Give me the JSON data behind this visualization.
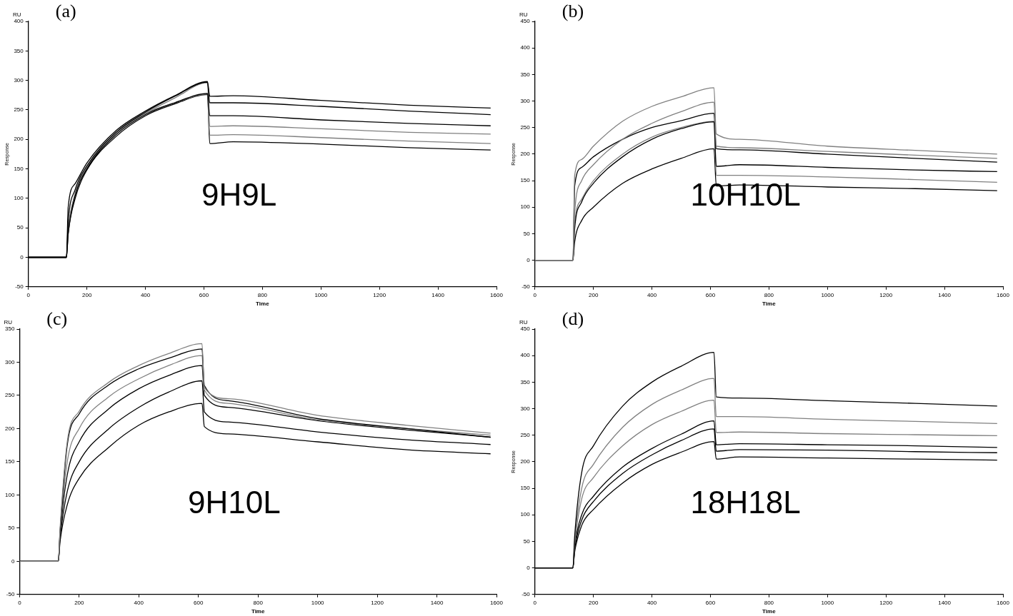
{
  "chart_data": [
    {
      "type": "line",
      "title": "(a)",
      "xlabel": "Time",
      "ylabel": "Response",
      "annotations": [
        "RU",
        "9H9L"
      ],
      "marker": "none",
      "x": [
        0,
        130,
        136,
        160,
        200,
        300,
        400,
        500,
        612,
        620,
        700,
        1000,
        1300,
        1580
      ],
      "xlim": [
        0,
        1600
      ],
      "xticks": [
        0,
        200,
        400,
        600,
        800,
        1000,
        1200,
        1400,
        1600
      ],
      "ylim": [
        -50,
        400
      ],
      "yticks": [
        -50,
        0,
        50,
        100,
        150,
        200,
        250,
        300,
        350,
        400
      ],
      "series": [
        {
          "color": "#000000",
          "values": [
            0,
            0,
            85,
            125,
            160,
            215,
            248,
            274,
            298,
            273,
            274,
            266,
            258,
            253
          ]
        },
        {
          "color": "#000000",
          "values": [
            0,
            0,
            60,
            115,
            155,
            212,
            246,
            273,
            297,
            262,
            262,
            256,
            248,
            242
          ]
        },
        {
          "color": "#000000",
          "values": [
            0,
            0,
            40,
            105,
            150,
            208,
            242,
            262,
            278,
            240,
            240,
            233,
            227,
            223
          ]
        },
        {
          "color": "#808080",
          "values": [
            0,
            0,
            45,
            108,
            152,
            210,
            244,
            270,
            296,
            222,
            223,
            218,
            212,
            209
          ]
        },
        {
          "color": "#808080",
          "values": [
            0,
            0,
            45,
            108,
            152,
            210,
            244,
            262,
            277,
            207,
            208,
            203,
            197,
            193
          ]
        },
        {
          "color": "#000000",
          "values": [
            0,
            0,
            40,
            100,
            148,
            205,
            240,
            260,
            276,
            193,
            196,
            192,
            186,
            182
          ]
        }
      ]
    },
    {
      "type": "line",
      "title": "(b)",
      "xlabel": "Time",
      "ylabel": "Response",
      "annotations": [
        "RU",
        "10H10L"
      ],
      "marker": "none",
      "x": [
        0,
        130,
        136,
        160,
        200,
        300,
        400,
        500,
        612,
        620,
        700,
        1000,
        1300,
        1580
      ],
      "xlim": [
        0,
        1600
      ],
      "xticks": [
        0,
        200,
        400,
        600,
        800,
        1000,
        1200,
        1400,
        1600
      ],
      "ylim": [
        -50,
        450
      ],
      "yticks": [
        -50,
        0,
        50,
        100,
        150,
        200,
        250,
        300,
        350,
        400,
        450
      ],
      "series": [
        {
          "color": "#808080",
          "values": [
            0,
            0,
            160,
            190,
            215,
            262,
            290,
            308,
            325,
            238,
            228,
            215,
            207,
            200
          ]
        },
        {
          "color": "#808080",
          "values": [
            0,
            0,
            90,
            150,
            180,
            228,
            258,
            280,
            298,
            215,
            212,
            205,
            198,
            192
          ]
        },
        {
          "color": "#000000",
          "values": [
            0,
            0,
            140,
            175,
            195,
            228,
            250,
            263,
            277,
            210,
            208,
            200,
            192,
            185
          ]
        },
        {
          "color": "#000000",
          "values": [
            0,
            0,
            60,
            110,
            145,
            195,
            228,
            248,
            261,
            177,
            180,
            175,
            170,
            167
          ]
        },
        {
          "color": "#808080",
          "values": [
            0,
            0,
            70,
            115,
            150,
            200,
            232,
            250,
            262,
            160,
            160,
            157,
            152,
            147
          ]
        },
        {
          "color": "#000000",
          "values": [
            0,
            0,
            35,
            75,
            100,
            145,
            172,
            192,
            210,
            140,
            142,
            138,
            135,
            131
          ]
        }
      ]
    },
    {
      "type": "line",
      "title": "(c)",
      "xlabel": "Time",
      "annotations": [
        "RU",
        "9H10L"
      ],
      "marker": "none",
      "x": [
        0,
        130,
        136,
        160,
        200,
        300,
        400,
        500,
        612,
        620,
        700,
        1000,
        1300,
        1580
      ],
      "xlim": [
        0,
        1600
      ],
      "xticks": [
        0,
        200,
        400,
        600,
        800,
        1000,
        1200,
        1400,
        1600
      ],
      "ylim": [
        -50,
        350
      ],
      "yticks": [
        -50,
        0,
        50,
        100,
        150,
        200,
        250,
        300,
        350
      ],
      "series": [
        {
          "color": "#808080",
          "values": [
            0,
            0,
            50,
            180,
            226,
            270,
            295,
            313,
            328,
            262,
            245,
            220,
            205,
            193
          ]
        },
        {
          "color": "#000000",
          "values": [
            0,
            0,
            45,
            175,
            222,
            266,
            290,
            306,
            320,
            265,
            242,
            215,
            200,
            187
          ]
        },
        {
          "color": "#808080",
          "values": [
            0,
            0,
            45,
            150,
            200,
            248,
            275,
            295,
            310,
            258,
            238,
            213,
            200,
            190
          ]
        },
        {
          "color": "#000000",
          "values": [
            0,
            0,
            40,
            130,
            180,
            230,
            260,
            280,
            295,
            250,
            232,
            212,
            198,
            187
          ]
        },
        {
          "color": "#000000",
          "values": [
            0,
            0,
            35,
            105,
            150,
            200,
            232,
            255,
            272,
            225,
            210,
            195,
            183,
            176
          ]
        },
        {
          "color": "#000000",
          "values": [
            0,
            0,
            30,
            85,
            125,
            172,
            205,
            225,
            238,
            203,
            192,
            180,
            168,
            162
          ]
        }
      ]
    },
    {
      "type": "line",
      "title": "(d)",
      "xlabel": "Time",
      "ylabel": "Response",
      "annotations": [
        "RU",
        "18H18L"
      ],
      "marker": "none",
      "x": [
        0,
        130,
        136,
        160,
        200,
        300,
        400,
        500,
        612,
        620,
        700,
        1000,
        1300,
        1580
      ],
      "xlim": [
        0,
        1600
      ],
      "xticks": [
        0,
        200,
        400,
        600,
        800,
        1000,
        1200,
        1400,
        1600
      ],
      "ylim": [
        -50,
        450
      ],
      "yticks": [
        -50,
        0,
        50,
        100,
        150,
        200,
        250,
        300,
        350,
        400,
        450
      ],
      "series": [
        {
          "color": "#000000",
          "values": [
            0,
            0,
            60,
            180,
            230,
            305,
            350,
            380,
            406,
            322,
            320,
            315,
            310,
            305
          ]
        },
        {
          "color": "#808080",
          "values": [
            0,
            0,
            50,
            150,
            195,
            265,
            308,
            335,
            357,
            285,
            285,
            280,
            276,
            272
          ]
        },
        {
          "color": "#808080",
          "values": [
            0,
            0,
            45,
            130,
            170,
            230,
            270,
            295,
            316,
            255,
            256,
            253,
            251,
            249
          ]
        },
        {
          "color": "#000000",
          "values": [
            0,
            0,
            40,
            100,
            135,
            190,
            225,
            252,
            277,
            232,
            234,
            232,
            230,
            227
          ]
        },
        {
          "color": "#000000",
          "values": [
            0,
            0,
            35,
            90,
            125,
            178,
            213,
            240,
            262,
            220,
            223,
            222,
            219,
            217
          ]
        },
        {
          "color": "#000000",
          "values": [
            0,
            0,
            30,
            80,
            110,
            160,
            195,
            218,
            238,
            205,
            209,
            207,
            205,
            203
          ]
        }
      ]
    }
  ]
}
